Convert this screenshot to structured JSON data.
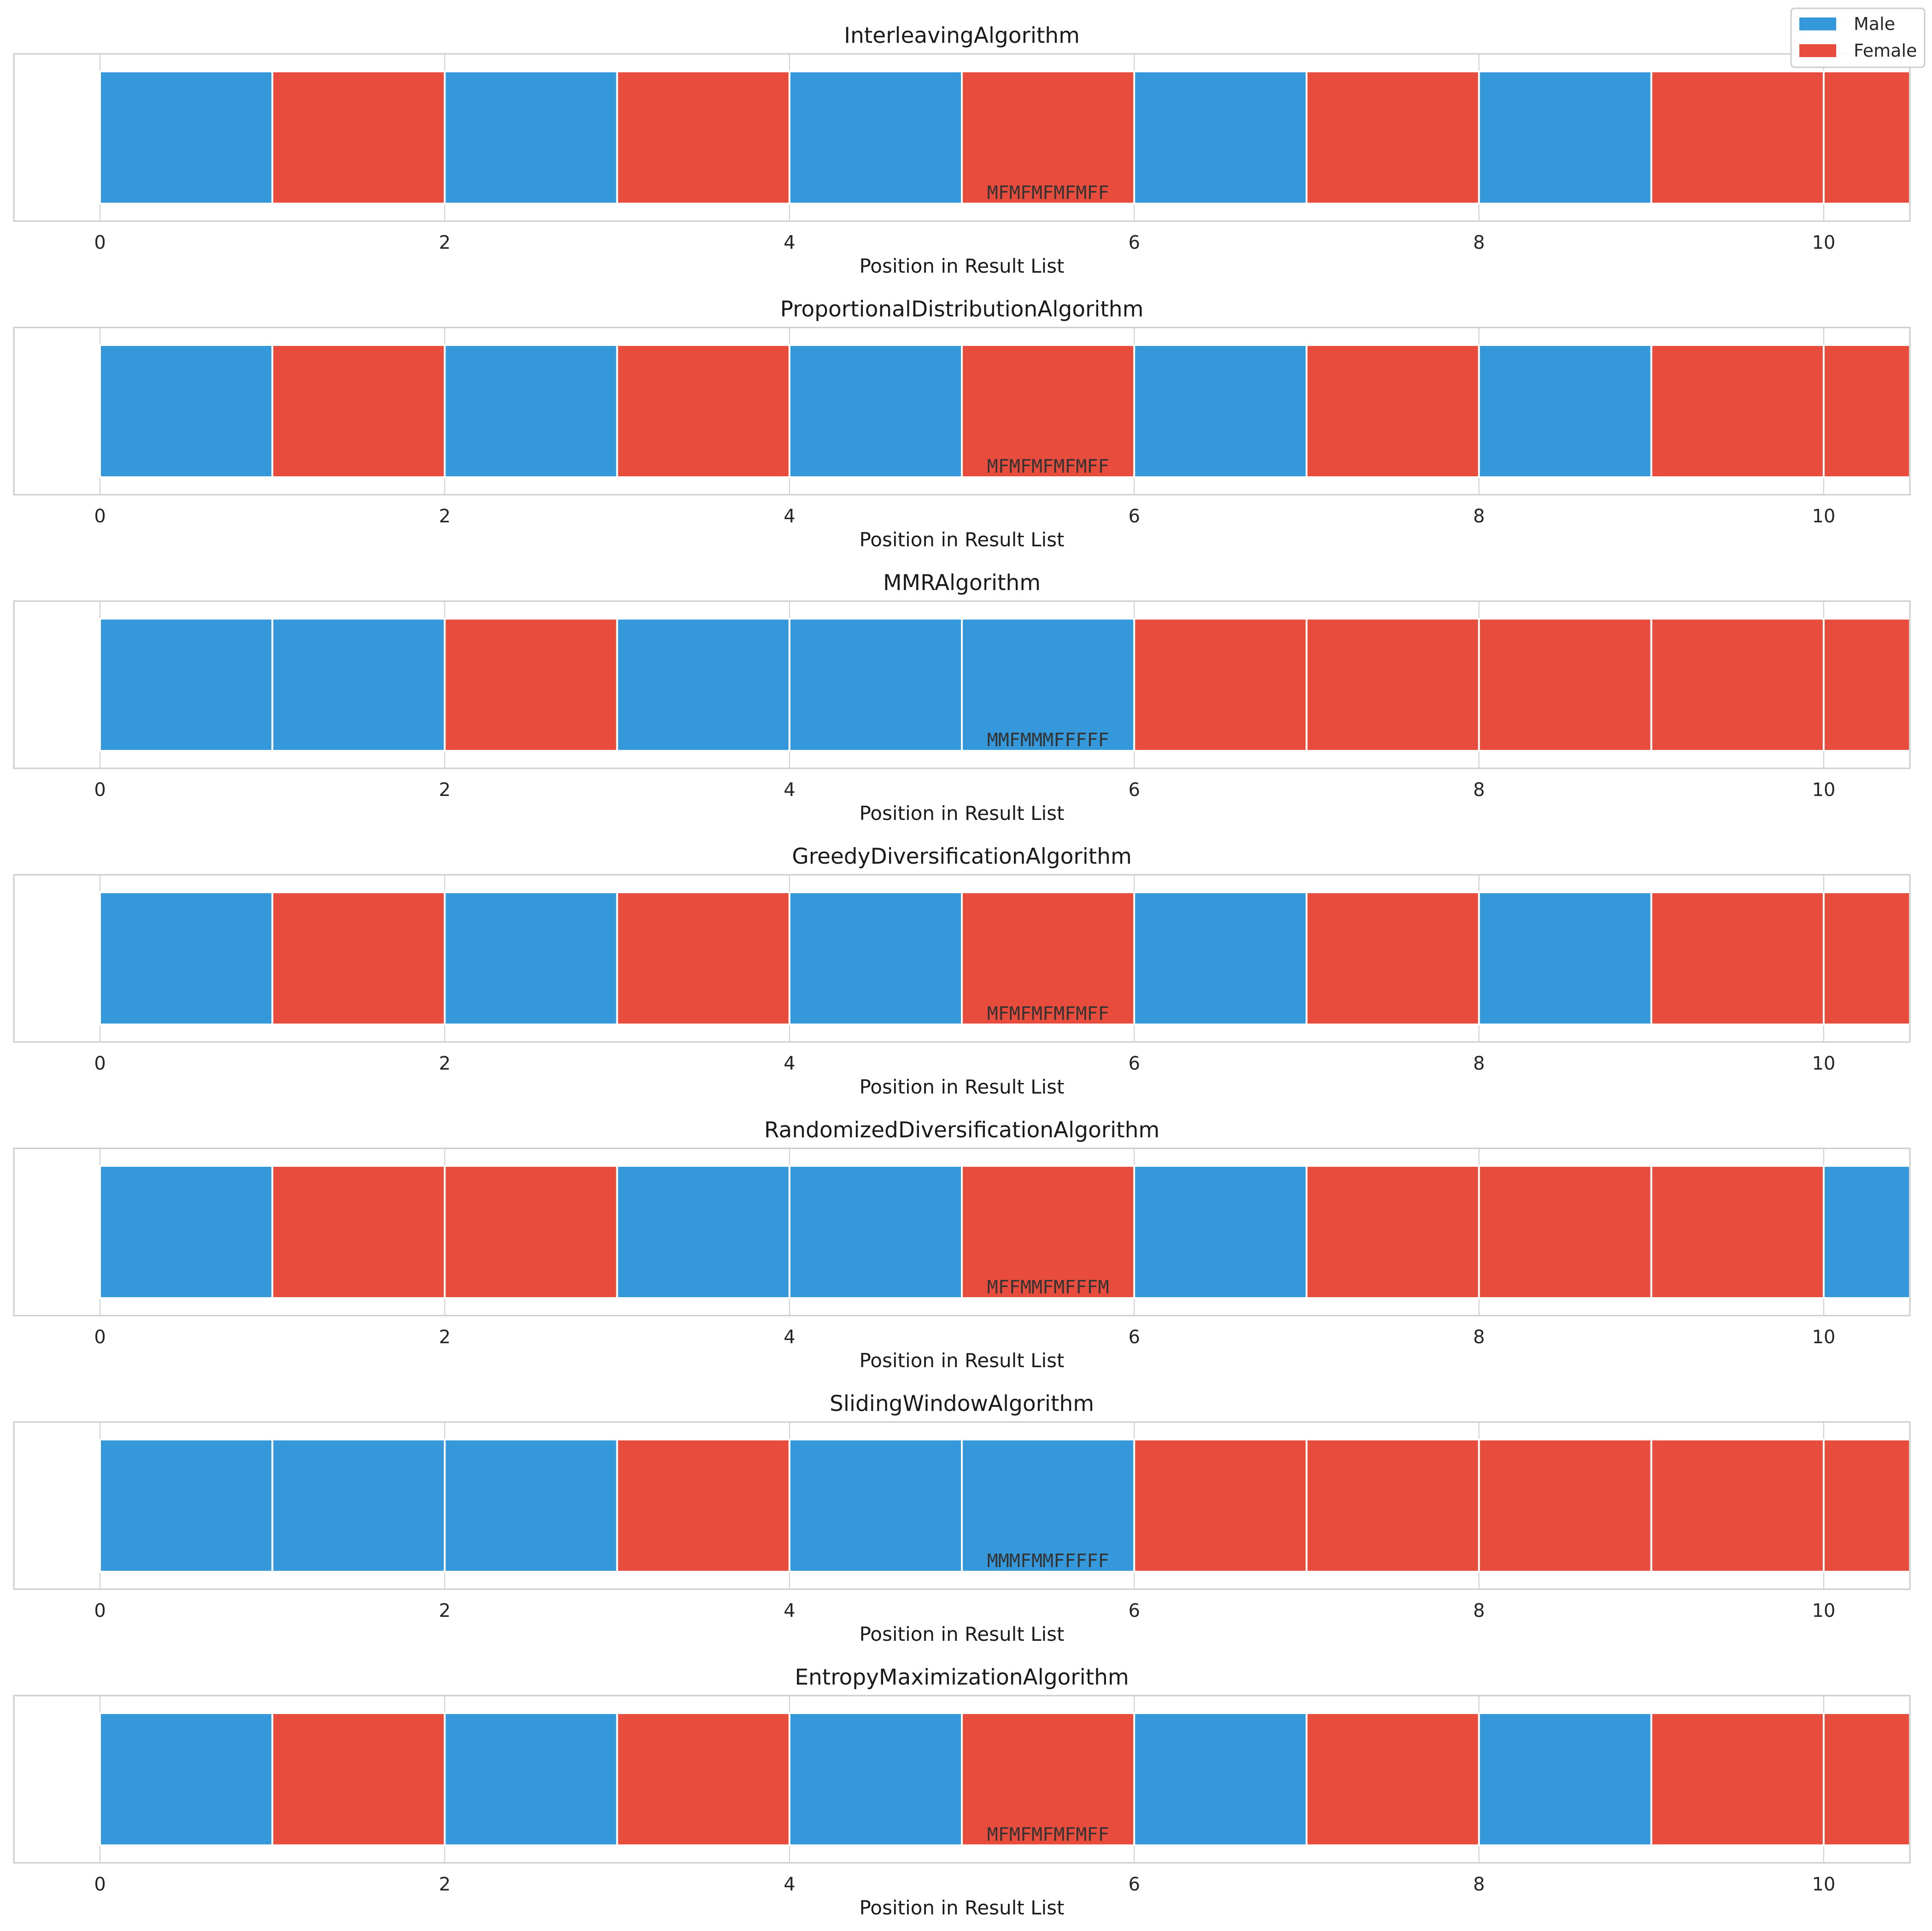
{
  "legend": {
    "placement": "top-right",
    "items": [
      {
        "label": "Male",
        "color": "#3498db"
      },
      {
        "label": "Female",
        "color": "#e74c3c"
      }
    ]
  },
  "chart_data": [
    {
      "type": "bar",
      "title": "InterleavingAlgorithm",
      "xlabel": "Position in Result List",
      "xlim": [
        -0.5,
        10.5
      ],
      "xticks": [
        0,
        2,
        4,
        6,
        8,
        10
      ],
      "sequence": "MFMFMFMFMFF",
      "grid": true
    },
    {
      "type": "bar",
      "title": "ProportionalDistributionAlgorithm",
      "xlabel": "Position in Result List",
      "xlim": [
        -0.5,
        10.5
      ],
      "xticks": [
        0,
        2,
        4,
        6,
        8,
        10
      ],
      "sequence": "MFMFMFMFMFF",
      "grid": true
    },
    {
      "type": "bar",
      "title": "MMRAlgorithm",
      "xlabel": "Position in Result List",
      "xlim": [
        -0.5,
        10.5
      ],
      "xticks": [
        0,
        2,
        4,
        6,
        8,
        10
      ],
      "sequence": "MMFMMMFFFFF",
      "grid": true
    },
    {
      "type": "bar",
      "title": "GreedyDiversificationAlgorithm",
      "xlabel": "Position in Result List",
      "xlim": [
        -0.5,
        10.5
      ],
      "xticks": [
        0,
        2,
        4,
        6,
        8,
        10
      ],
      "sequence": "MFMFMFMFMFF",
      "grid": true
    },
    {
      "type": "bar",
      "title": "RandomizedDiversificationAlgorithm",
      "xlabel": "Position in Result List",
      "xlim": [
        -0.5,
        10.5
      ],
      "xticks": [
        0,
        2,
        4,
        6,
        8,
        10
      ],
      "sequence": "MFFMMFMFFFM",
      "grid": true
    },
    {
      "type": "bar",
      "title": "SlidingWindowAlgorithm",
      "xlabel": "Position in Result List",
      "xlim": [
        -0.5,
        10.5
      ],
      "xticks": [
        0,
        2,
        4,
        6,
        8,
        10
      ],
      "sequence": "MMMFMMFFFFF",
      "grid": true
    },
    {
      "type": "bar",
      "title": "EntropyMaximizationAlgorithm",
      "xlabel": "Position in Result List",
      "xlim": [
        -0.5,
        10.5
      ],
      "xticks": [
        0,
        2,
        4,
        6,
        8,
        10
      ],
      "sequence": "MFMFMFMFMFF",
      "grid": true
    }
  ]
}
